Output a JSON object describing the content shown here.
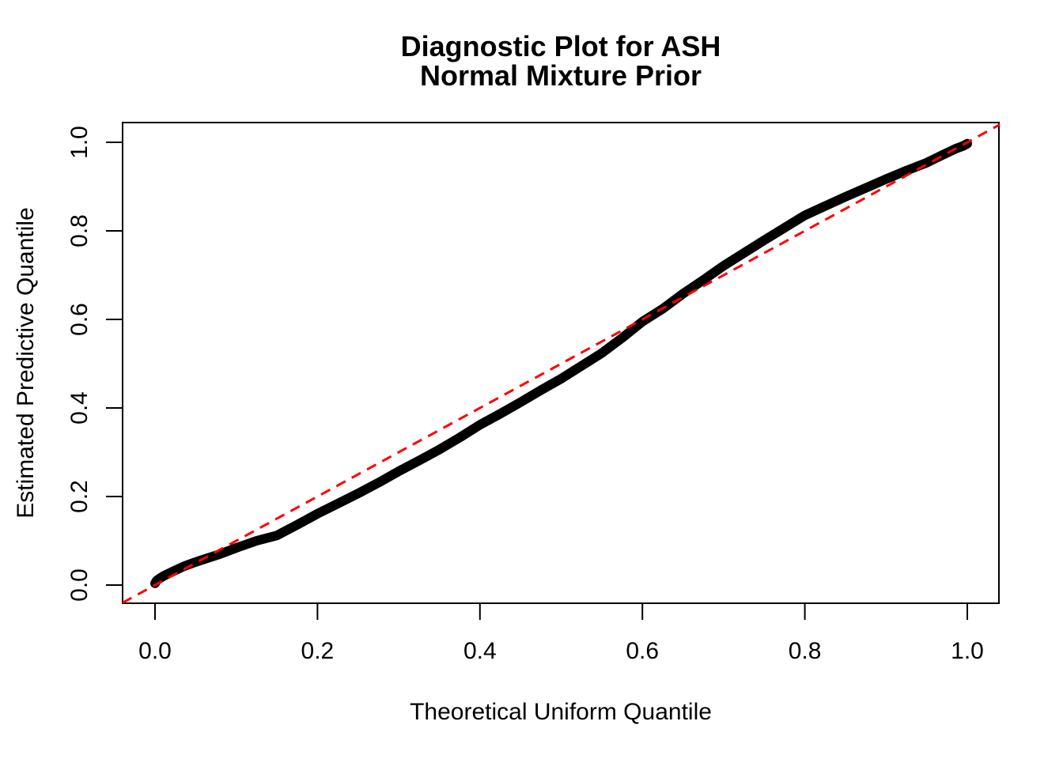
{
  "title": {
    "line1": "Diagnostic Plot for ASH",
    "line2": "Normal Mixture Prior"
  },
  "axes": {
    "x_label": "Theoretical Uniform Quantile",
    "y_label": "Estimated Predictive Quantile"
  },
  "colors": {
    "background": "#FFFFFF",
    "frame": "#000000",
    "curve": "#000000",
    "reference": "#FF0000",
    "text": "#000000"
  },
  "chart_data": {
    "type": "scatter",
    "title": "Diagnostic Plot for ASH\nNormal Mixture Prior",
    "xlabel": "Theoretical Uniform Quantile",
    "ylabel": "Estimated Predictive Quantile",
    "xlim": [
      -0.04,
      1.04
    ],
    "ylim": [
      -0.04,
      1.04
    ],
    "grid": false,
    "legend": null,
    "x_ticks": [
      0.0,
      0.2,
      0.4,
      0.6,
      0.8,
      1.0
    ],
    "x_tick_labels": [
      "0.0",
      "0.2",
      "0.4",
      "0.6",
      "0.8",
      "1.0"
    ],
    "y_ticks": [
      0.0,
      0.2,
      0.4,
      0.6,
      0.8,
      1.0
    ],
    "y_tick_labels": [
      "0.0",
      "0.2",
      "0.4",
      "0.6",
      "0.8",
      "1.0"
    ],
    "series": [
      {
        "name": "estimated-predictive-quantiles",
        "style": "thick-point-curve",
        "color": "#000000",
        "points": [
          [
            0.0,
            0.004
          ],
          [
            0.002,
            0.01
          ],
          [
            0.005,
            0.014
          ],
          [
            0.01,
            0.02
          ],
          [
            0.02,
            0.029
          ],
          [
            0.035,
            0.042
          ],
          [
            0.05,
            0.052
          ],
          [
            0.065,
            0.061
          ],
          [
            0.08,
            0.07
          ],
          [
            0.1,
            0.084
          ],
          [
            0.125,
            0.1
          ],
          [
            0.15,
            0.112
          ],
          [
            0.175,
            0.136
          ],
          [
            0.2,
            0.161
          ],
          [
            0.225,
            0.184
          ],
          [
            0.25,
            0.207
          ],
          [
            0.275,
            0.231
          ],
          [
            0.3,
            0.257
          ],
          [
            0.325,
            0.281
          ],
          [
            0.35,
            0.306
          ],
          [
            0.375,
            0.333
          ],
          [
            0.4,
            0.362
          ],
          [
            0.425,
            0.387
          ],
          [
            0.45,
            0.413
          ],
          [
            0.475,
            0.44
          ],
          [
            0.5,
            0.466
          ],
          [
            0.525,
            0.495
          ],
          [
            0.55,
            0.524
          ],
          [
            0.575,
            0.558
          ],
          [
            0.6,
            0.595
          ],
          [
            0.625,
            0.624
          ],
          [
            0.65,
            0.658
          ],
          [
            0.675,
            0.689
          ],
          [
            0.7,
            0.721
          ],
          [
            0.725,
            0.75
          ],
          [
            0.75,
            0.779
          ],
          [
            0.775,
            0.807
          ],
          [
            0.8,
            0.835
          ],
          [
            0.825,
            0.856
          ],
          [
            0.85,
            0.877
          ],
          [
            0.875,
            0.897
          ],
          [
            0.9,
            0.917
          ],
          [
            0.925,
            0.936
          ],
          [
            0.95,
            0.954
          ],
          [
            0.97,
            0.972
          ],
          [
            0.985,
            0.985
          ],
          [
            0.995,
            0.992
          ],
          [
            1.0,
            0.997
          ]
        ]
      },
      {
        "name": "identity-reference-line",
        "style": "dashed-line",
        "color": "#FF0000",
        "from": [
          -0.04,
          -0.04
        ],
        "to": [
          1.04,
          1.04
        ]
      }
    ]
  }
}
